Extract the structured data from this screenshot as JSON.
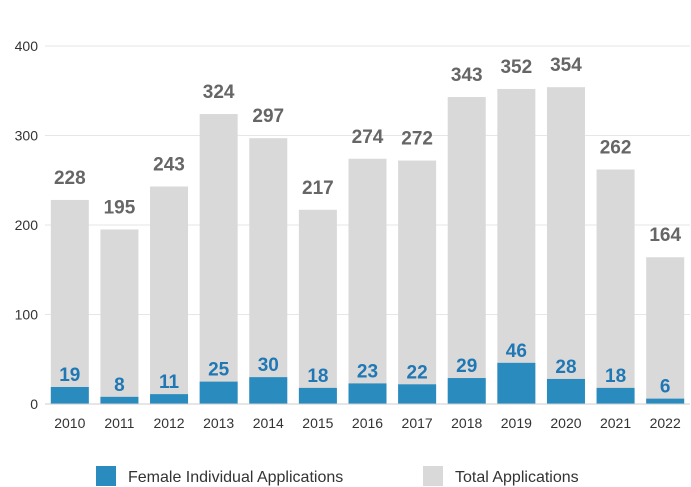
{
  "chart_data": {
    "type": "bar",
    "categories": [
      "2010",
      "2011",
      "2012",
      "2013",
      "2014",
      "2015",
      "2016",
      "2017",
      "2018",
      "2019",
      "2020",
      "2021",
      "2022"
    ],
    "series": [
      {
        "name": "Total Applications",
        "values": [
          228,
          195,
          243,
          324,
          297,
          217,
          274,
          272,
          343,
          352,
          354,
          262,
          164
        ],
        "color": "#d9d9d9"
      },
      {
        "name": "Female Individual Applications",
        "values": [
          19,
          8,
          11,
          25,
          30,
          18,
          23,
          22,
          29,
          46,
          28,
          18,
          6
        ],
        "color": "#2a8bbf"
      }
    ],
    "yticks": [
      0,
      100,
      200,
      300,
      400
    ],
    "ylim": [
      0,
      400
    ],
    "grid": true,
    "legend": {
      "position": "bottom"
    },
    "title": "",
    "xlabel": "",
    "ylabel": ""
  }
}
